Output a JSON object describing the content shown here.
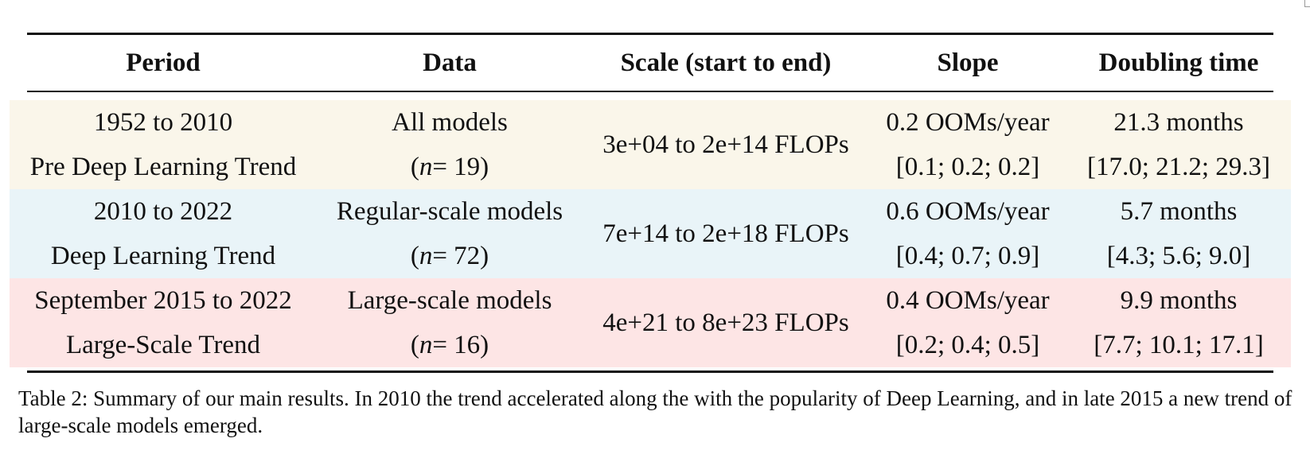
{
  "table": {
    "headers": [
      "Period",
      "Data",
      "Scale (start to end)",
      "Slope",
      "Doubling time"
    ],
    "rows": [
      {
        "period": "1952 to 2010",
        "trend": "Pre Deep Learning Trend",
        "data": "All models",
        "n_open": "(",
        "n_var": "n",
        "n_rest": " = 19)",
        "scale": "3e+04 to 2e+14 FLOPs",
        "slope": "0.2 OOMs/year",
        "slope_ci": "[0.1; 0.2; 0.2]",
        "doubling": "21.3 months",
        "doubling_ci": "[17.0; 21.2; 29.3]"
      },
      {
        "period": "2010 to 2022",
        "trend": "Deep Learning Trend",
        "data": "Regular-scale models",
        "n_open": "(",
        "n_var": "n",
        "n_rest": " = 72)",
        "scale": "7e+14 to 2e+18 FLOPs",
        "slope": "0.6 OOMs/year",
        "slope_ci": "[0.4; 0.7; 0.9]",
        "doubling": "5.7 months",
        "doubling_ci": "[4.3; 5.6; 9.0]"
      },
      {
        "period": "September 2015 to 2022",
        "trend": "Large-Scale Trend",
        "data": "Large-scale models",
        "n_open": "(",
        "n_var": "n",
        "n_rest": " = 16)",
        "scale": "4e+21 to 8e+23 FLOPs",
        "slope": "0.4 OOMs/year",
        "slope_ci": "[0.2; 0.4; 0.5]",
        "doubling": "9.9 months",
        "doubling_ci": "[7.7; 10.1; 17.1]"
      }
    ],
    "row_colors": [
      "#faf6ea",
      "#e9f4f8",
      "#fde5e5"
    ]
  },
  "caption": "Table 2: Summary of our main results. In 2010 the trend accelerated along the with the popularity of Deep Learning, and in late 2015 a new trend of large-scale models emerged."
}
